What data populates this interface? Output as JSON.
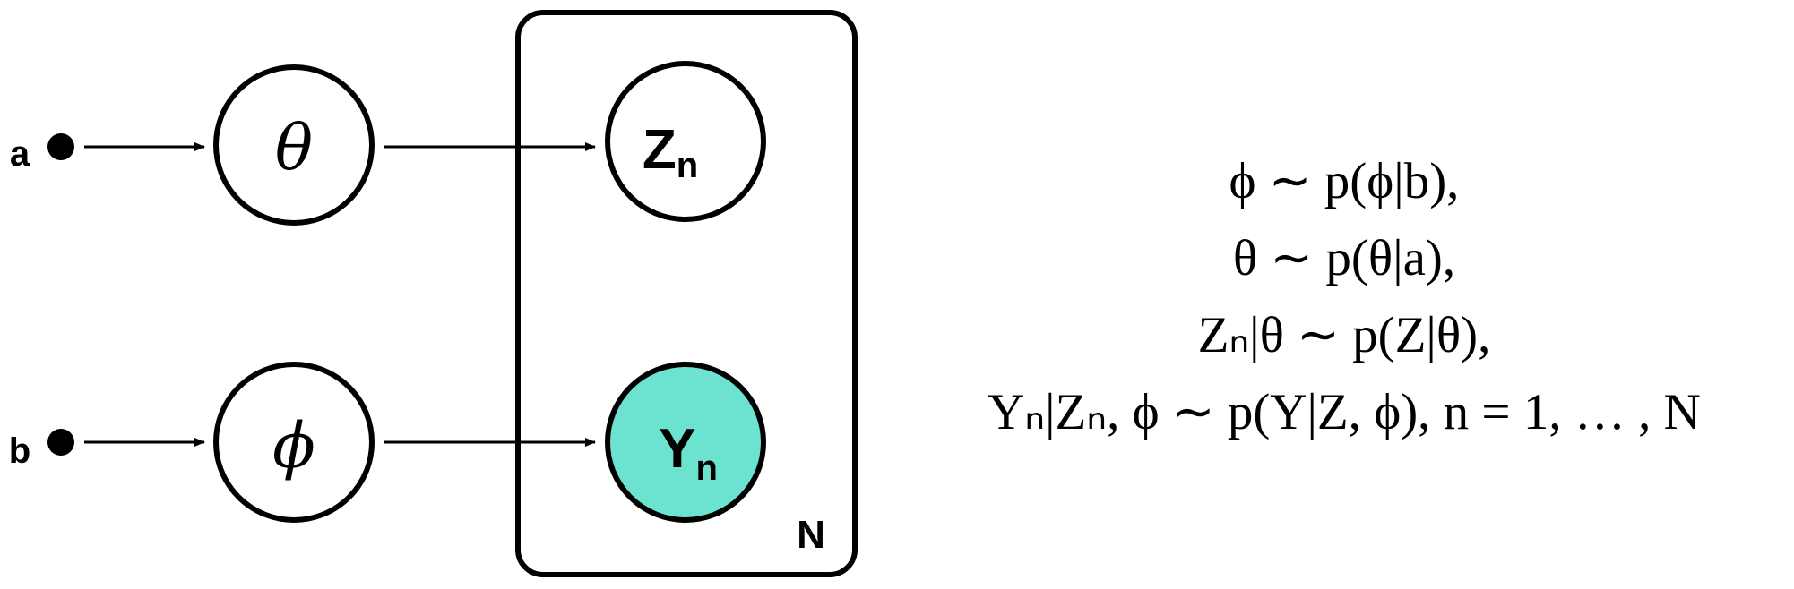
{
  "nodes": {
    "a": {
      "label": "a"
    },
    "b": {
      "label": "b"
    },
    "theta": {
      "symbol": "θ"
    },
    "phi": {
      "symbol": "ϕ"
    },
    "z": {
      "main": "Z",
      "sub": "n"
    },
    "y": {
      "main": "Y",
      "sub": "n",
      "fill": "#6ce3d0"
    }
  },
  "plate": {
    "label": "N"
  },
  "equations": [
    "ϕ ∼ p(ϕ|b),",
    "θ ∼ p(θ|a),",
    "Zₙ|θ ∼ p(Z|θ),",
    "Yₙ|Zₙ, ϕ ∼ p(Y|Z, ϕ),  n = 1, … , N"
  ]
}
